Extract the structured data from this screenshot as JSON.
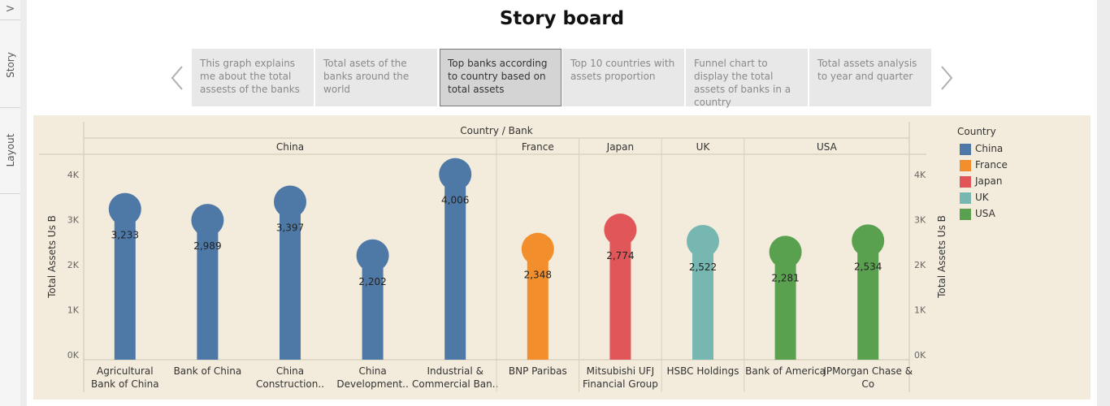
{
  "sidebar": {
    "expand_glyph": ">",
    "tabs": [
      {
        "label": "Story"
      },
      {
        "label": "Layout"
      }
    ]
  },
  "header": {
    "title": "Story board"
  },
  "storypoints": [
    {
      "text": "This graph explains me about the total assests of the banks"
    },
    {
      "text": "Total asets of the banks around the world"
    },
    {
      "text": "Top banks according to country based on total assets",
      "active": true
    },
    {
      "text": "Top 10 countries with assets proportion"
    },
    {
      "text": "Funnel chart to display the total assets of banks in a country"
    },
    {
      "text": "Total assets analysis to year and quarter"
    }
  ],
  "legend": {
    "title": "Country",
    "items": [
      {
        "label": "China",
        "color": "#4e79a7"
      },
      {
        "label": "France",
        "color": "#f28e2b"
      },
      {
        "label": "Japan",
        "color": "#e15759"
      },
      {
        "label": "UK",
        "color": "#76b7b2"
      },
      {
        "label": "USA",
        "color": "#59a14f"
      }
    ]
  },
  "chart_data": {
    "type": "bar",
    "mark": "lollipop",
    "header_title": "Country / Bank",
    "ylabel": "Total Assets Us B",
    "ylabel_right": "Total Assets Us B",
    "ylim": [
      0,
      4400
    ],
    "yticks": [
      0,
      1000,
      2000,
      3000,
      4000
    ],
    "ytick_labels": [
      "0K",
      "1K",
      "2K",
      "3K",
      "4K"
    ],
    "countries": [
      {
        "name": "China",
        "color": "#4e79a7",
        "banks": [
          {
            "label": "Agricultural Bank of China",
            "value": 3233,
            "value_label": "3,233"
          },
          {
            "label": "Bank of China",
            "value": 2989,
            "value_label": "2,989"
          },
          {
            "label": "China Construction..",
            "value": 3397,
            "value_label": "3,397"
          },
          {
            "label": "China Development..",
            "value": 2202,
            "value_label": "2,202"
          },
          {
            "label": "Industrial & Commercial Ban..",
            "value": 4006,
            "value_label": "4,006"
          }
        ]
      },
      {
        "name": "France",
        "color": "#f28e2b",
        "banks": [
          {
            "label": "BNP Paribas",
            "value": 2348,
            "value_label": "2,348"
          }
        ]
      },
      {
        "name": "Japan",
        "color": "#e15759",
        "banks": [
          {
            "label": "Mitsubishi UFJ Financial Group",
            "value": 2774,
            "value_label": "2,774"
          }
        ]
      },
      {
        "name": "UK",
        "color": "#76b7b2",
        "banks": [
          {
            "label": "HSBC Holdings",
            "value": 2522,
            "value_label": "2,522"
          }
        ]
      },
      {
        "name": "USA",
        "color": "#59a14f",
        "banks": [
          {
            "label": "Bank of America",
            "value": 2281,
            "value_label": "2,281"
          },
          {
            "label": "JPMorgan Chase & Co",
            "value": 2534,
            "value_label": "2,534"
          }
        ]
      }
    ]
  }
}
